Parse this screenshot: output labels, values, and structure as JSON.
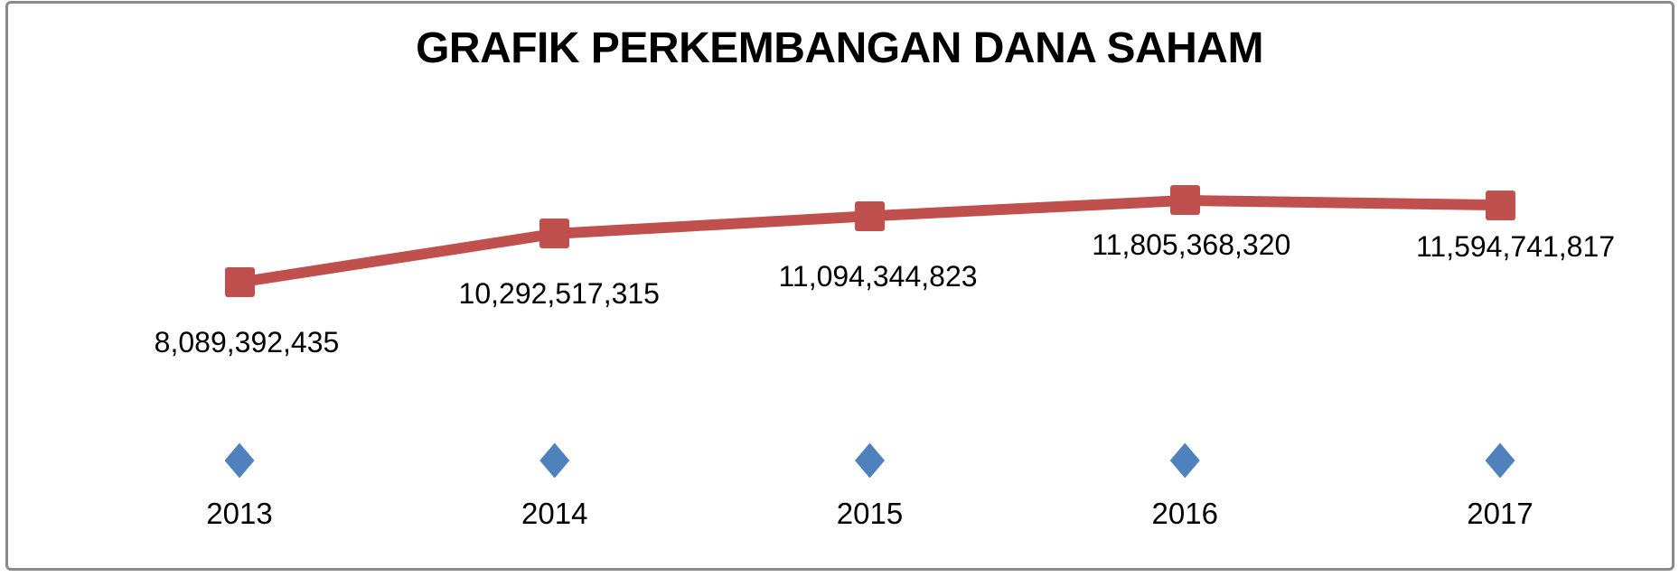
{
  "frame": {
    "background": "#ffffff",
    "border_color": "#8a8a8a"
  },
  "chart_data": {
    "type": "line",
    "title": "GRAFIK PERKEMBANGAN DANA SAHAM",
    "categories": [
      "2013",
      "2014",
      "2015",
      "2016",
      "2017"
    ],
    "series": [
      {
        "name": "dana_saham",
        "color": "#C0504D",
        "marker": "square",
        "line": true,
        "values": [
          8089392435,
          10292517315,
          11094344823,
          11805368320,
          11594741817
        ],
        "data_labels": [
          "8,089,392,435",
          "10,292,517,315",
          "11,094,344,823",
          "11,805,368,320",
          "11,594,741,817"
        ]
      },
      {
        "name": "tahun",
        "color": "#4F81BD",
        "marker": "diamond",
        "line": false,
        "values": [
          2013,
          2014,
          2015,
          2016,
          2017
        ],
        "data_labels": []
      }
    ],
    "xlabel": "",
    "ylabel": "",
    "ylim": [
      0,
      12500000000
    ],
    "grid": false,
    "legend_position": "none",
    "axes_visible": false
  }
}
